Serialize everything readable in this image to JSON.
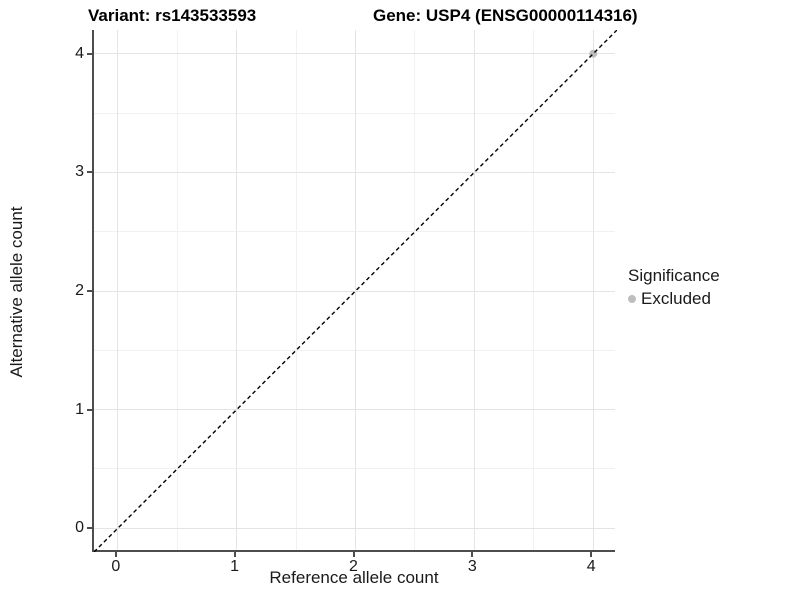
{
  "chart_data": {
    "type": "scatter",
    "title_left": "Variant: rs143533593",
    "title_right": "Gene: USP4 (ENSG00000114316)",
    "xlabel": "Reference allele count",
    "ylabel": "Alternative allele count",
    "xlim": [
      -0.2,
      4.2
    ],
    "ylim": [
      -0.2,
      4.2
    ],
    "x_ticks": [
      0,
      1,
      2,
      3,
      4
    ],
    "y_ticks": [
      0,
      1,
      2,
      3,
      4
    ],
    "x_minor": [
      0.5,
      1.5,
      2.5,
      3.5
    ],
    "y_minor": [
      0.5,
      1.5,
      2.5,
      3.5
    ],
    "grid": true,
    "identity_line": {
      "style": "dashed",
      "from": [
        -0.2,
        -0.2
      ],
      "to": [
        4.2,
        4.2
      ],
      "color": "#000000"
    },
    "series": [
      {
        "name": "Excluded",
        "color": "#bebebe",
        "points": [
          [
            4,
            4
          ]
        ]
      }
    ],
    "legend": {
      "title": "Significance",
      "position": "right",
      "items": [
        {
          "label": "Excluded",
          "color": "#bebebe"
        }
      ]
    },
    "colors": {
      "panel_background": "#ffffff",
      "grid_major": "#e4e4e4",
      "grid_minor": "#f1f1f1",
      "axis_line": "#4d4d4d",
      "text": "#1a1a1a"
    }
  }
}
